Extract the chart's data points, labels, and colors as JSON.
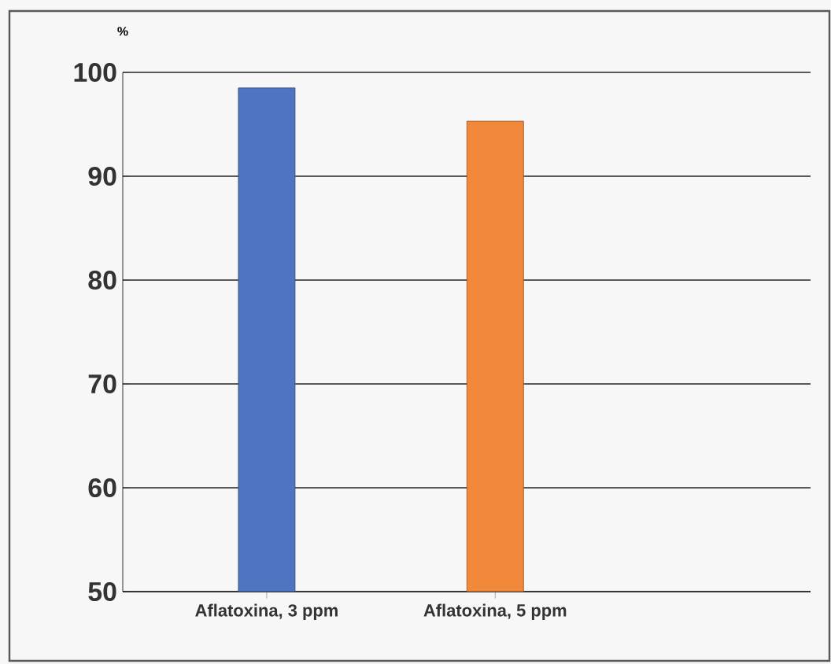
{
  "chart_data": {
    "type": "bar",
    "ylabel": "%",
    "categories": [
      "Aflatoxina, 3 ppm",
      "Aflatoxina, 5 ppm"
    ],
    "values": [
      98.5,
      95.3
    ],
    "colors": [
      "#4f74c2",
      "#f2883a"
    ],
    "ylim": [
      50,
      100
    ],
    "yticks": [
      50,
      60,
      70,
      80,
      90,
      100
    ],
    "grid": "y"
  }
}
